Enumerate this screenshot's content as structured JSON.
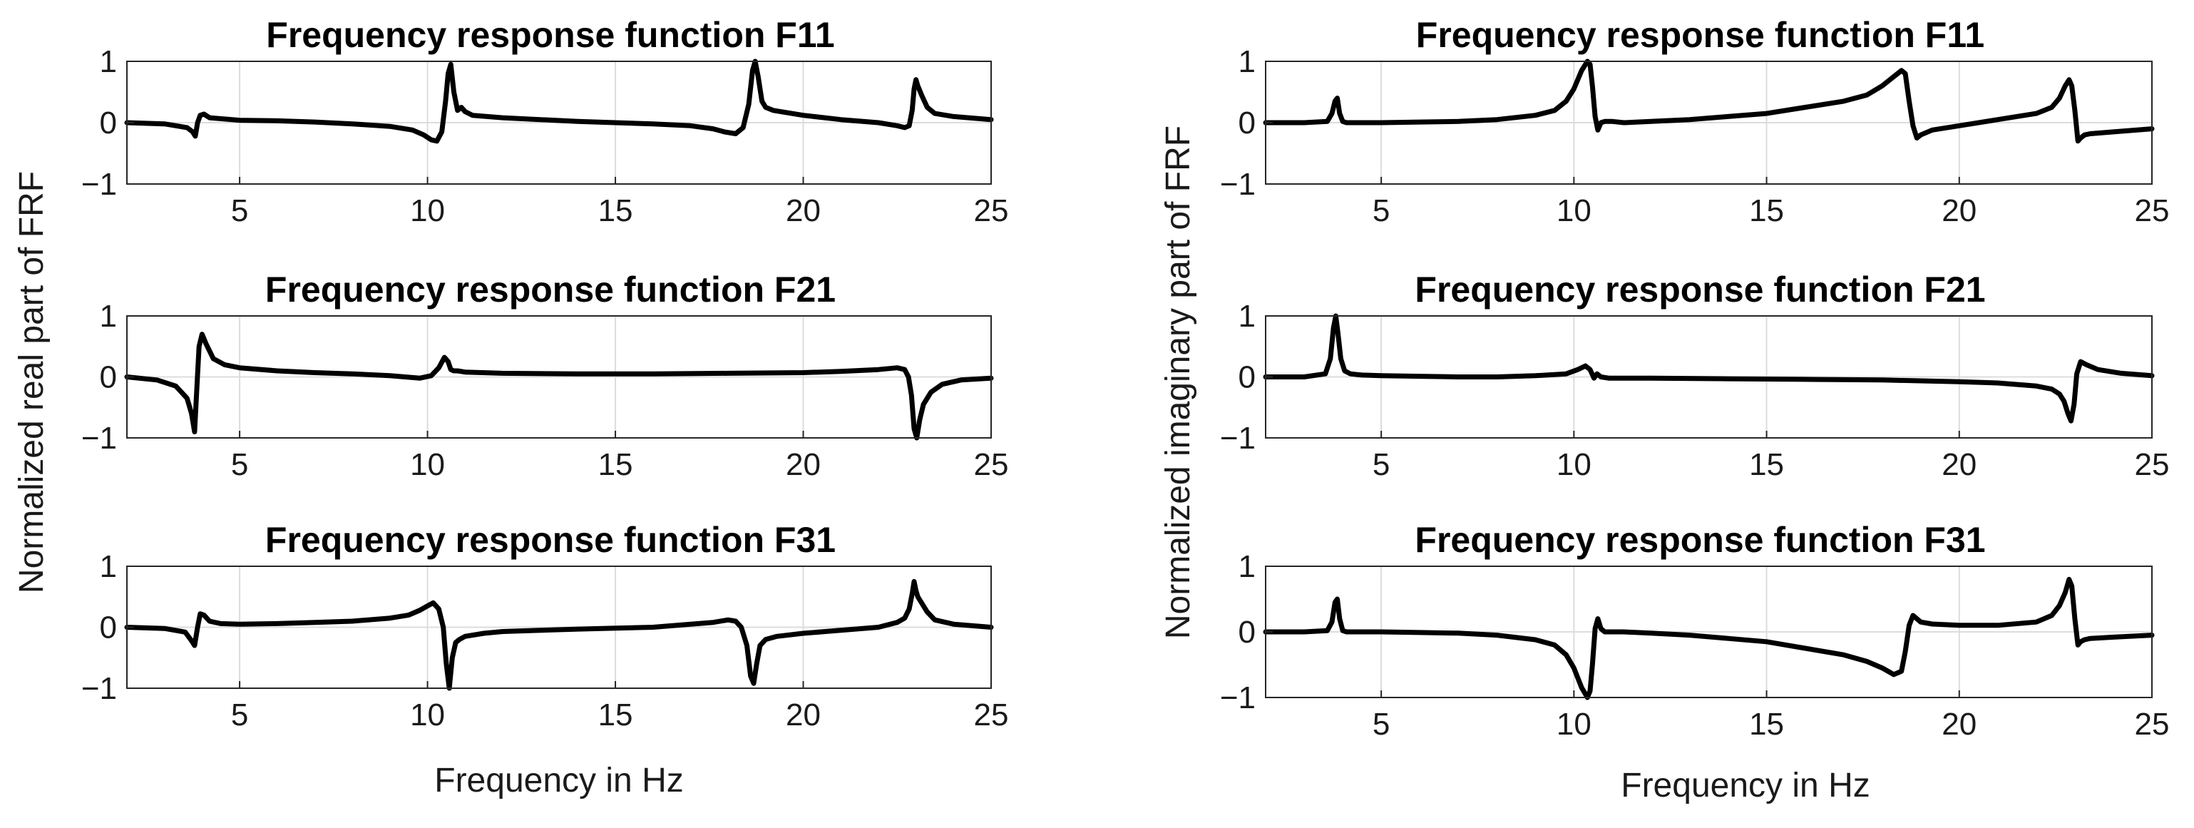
{
  "figure": {
    "ylabel_left": "Normalized real part of FRF",
    "ylabel_right": "Normalized imaginary part of FRF",
    "xlabel": "Frequency in Hz"
  },
  "chart_data": [
    {
      "type": "line",
      "title": "Frequency response function F11",
      "xlabel": "",
      "ylabel": "",
      "xlim": [
        2,
        25
      ],
      "ylim": [
        -1,
        1
      ],
      "xticks": [
        5,
        10,
        15,
        20,
        25
      ],
      "yticks": [
        -1,
        0,
        1
      ],
      "grid": true,
      "line_color": "#000000",
      "series": [
        {
          "x": [
            2,
            3,
            3.6,
            3.75,
            3.82,
            3.88,
            3.95,
            4.05,
            4.2,
            5,
            6,
            7,
            8,
            9,
            9.6,
            9.9,
            10.1,
            10.25,
            10.38,
            10.48,
            10.55,
            10.62,
            10.7,
            10.8,
            10.9,
            11,
            11.2,
            12,
            13,
            14,
            15,
            16,
            17,
            17.6,
            17.9,
            18.2,
            18.4,
            18.55,
            18.65,
            18.72,
            18.8,
            18.9,
            19,
            19.2,
            20,
            21,
            22,
            22.5,
            22.7,
            22.82,
            22.9,
            22.95,
            23.0,
            23.05,
            23.15,
            23.3,
            23.5,
            24,
            25
          ],
          "y": [
            0,
            -0.02,
            -0.08,
            -0.15,
            -0.22,
            0.0,
            0.12,
            0.14,
            0.08,
            0.04,
            0.03,
            0.01,
            -0.02,
            -0.06,
            -0.12,
            -0.2,
            -0.28,
            -0.3,
            -0.15,
            0.35,
            0.8,
            0.95,
            0.5,
            0.2,
            0.25,
            0.18,
            0.12,
            0.08,
            0.05,
            0.02,
            0.0,
            -0.02,
            -0.05,
            -0.1,
            -0.15,
            -0.18,
            -0.08,
            0.3,
            0.85,
            1.0,
            0.75,
            0.35,
            0.25,
            0.2,
            0.12,
            0.05,
            0.0,
            -0.05,
            -0.08,
            -0.05,
            0.2,
            0.55,
            0.7,
            0.6,
            0.45,
            0.25,
            0.15,
            0.1,
            0.05
          ]
        }
      ]
    },
    {
      "type": "line",
      "title": "Frequency response function F11",
      "xlabel": "",
      "ylabel": "",
      "xlim": [
        2,
        25
      ],
      "ylim": [
        -1,
        1
      ],
      "xticks": [
        5,
        10,
        15,
        20,
        25
      ],
      "yticks": [
        -1,
        0,
        1
      ],
      "grid": true,
      "line_color": "#000000",
      "series": [
        {
          "x": [
            2,
            3,
            3.6,
            3.72,
            3.8,
            3.86,
            3.92,
            4.0,
            4.1,
            4.3,
            5,
            6,
            7,
            8,
            9,
            9.5,
            9.8,
            10.0,
            10.2,
            10.35,
            10.42,
            10.48,
            10.55,
            10.62,
            10.7,
            10.8,
            11,
            11.3,
            12,
            13,
            14,
            15,
            16,
            17,
            17.6,
            18.0,
            18.3,
            18.5,
            18.6,
            18.7,
            18.8,
            18.9,
            19.0,
            19.3,
            20,
            21,
            22,
            22.4,
            22.6,
            22.75,
            22.85,
            22.92,
            23.0,
            23.08,
            23.15,
            23.25,
            23.4,
            24,
            25
          ],
          "y": [
            0,
            0.0,
            0.02,
            0.15,
            0.35,
            0.4,
            0.15,
            0.02,
            0.0,
            0.0,
            0.0,
            0.01,
            0.02,
            0.05,
            0.12,
            0.2,
            0.35,
            0.55,
            0.85,
            1.0,
            0.95,
            0.6,
            0.1,
            -0.12,
            0.0,
            0.02,
            0.02,
            0.0,
            0.02,
            0.05,
            0.1,
            0.15,
            0.25,
            0.35,
            0.45,
            0.6,
            0.75,
            0.85,
            0.8,
            0.35,
            -0.05,
            -0.25,
            -0.2,
            -0.12,
            -0.05,
            0.05,
            0.15,
            0.25,
            0.4,
            0.6,
            0.7,
            0.6,
            0.2,
            -0.3,
            -0.25,
            -0.2,
            -0.18,
            -0.15,
            -0.1
          ]
        }
      ]
    },
    {
      "type": "line",
      "title": "Frequency response function F21",
      "xlabel": "",
      "ylabel": "",
      "xlim": [
        2,
        25
      ],
      "ylim": [
        -1,
        1
      ],
      "xticks": [
        5,
        10,
        15,
        20,
        25
      ],
      "yticks": [
        -1,
        0,
        1
      ],
      "grid": true,
      "line_color": "#000000",
      "series": [
        {
          "x": [
            2,
            2.8,
            3.3,
            3.6,
            3.72,
            3.8,
            3.86,
            3.92,
            4.0,
            4.1,
            4.3,
            4.6,
            5,
            6,
            7,
            8,
            9,
            9.8,
            10.1,
            10.3,
            10.45,
            10.55,
            10.62,
            10.7,
            10.8,
            11,
            12,
            14,
            16,
            18,
            20,
            21,
            22,
            22.5,
            22.7,
            22.8,
            22.88,
            22.95,
            23.02,
            23.1,
            23.2,
            23.4,
            23.7,
            24.2,
            25
          ],
          "y": [
            0,
            -0.05,
            -0.15,
            -0.35,
            -0.6,
            -0.9,
            -0.2,
            0.5,
            0.7,
            0.55,
            0.3,
            0.2,
            0.15,
            0.1,
            0.07,
            0.05,
            0.02,
            -0.02,
            0.02,
            0.15,
            0.32,
            0.25,
            0.12,
            0.1,
            0.1,
            0.08,
            0.06,
            0.05,
            0.05,
            0.06,
            0.07,
            0.09,
            0.12,
            0.15,
            0.12,
            0.0,
            -0.3,
            -0.85,
            -1.0,
            -0.7,
            -0.45,
            -0.25,
            -0.12,
            -0.05,
            -0.02
          ]
        }
      ]
    },
    {
      "type": "line",
      "title": "Frequency response function F21",
      "xlabel": "",
      "ylabel": "",
      "xlim": [
        2,
        25
      ],
      "ylim": [
        -1,
        1
      ],
      "xticks": [
        5,
        10,
        15,
        20,
        25
      ],
      "yticks": [
        -1,
        0,
        1
      ],
      "grid": true,
      "line_color": "#000000",
      "series": [
        {
          "x": [
            2,
            3,
            3.55,
            3.68,
            3.76,
            3.82,
            3.88,
            3.95,
            4.05,
            4.2,
            4.5,
            5,
            6,
            7,
            8,
            9,
            9.8,
            10.1,
            10.3,
            10.42,
            10.52,
            10.6,
            10.7,
            10.9,
            11.2,
            12,
            14,
            16,
            18,
            20,
            21,
            22,
            22.4,
            22.6,
            22.72,
            22.82,
            22.9,
            22.98,
            23.05,
            23.15,
            23.3,
            23.6,
            24.2,
            25
          ],
          "y": [
            0,
            0.0,
            0.05,
            0.3,
            0.8,
            1.0,
            0.7,
            0.3,
            0.1,
            0.05,
            0.03,
            0.02,
            0.01,
            0.0,
            0.0,
            0.02,
            0.05,
            0.12,
            0.18,
            0.12,
            -0.02,
            0.05,
            0.0,
            -0.02,
            -0.02,
            -0.02,
            -0.03,
            -0.04,
            -0.05,
            -0.08,
            -0.1,
            -0.15,
            -0.2,
            -0.28,
            -0.4,
            -0.6,
            -0.72,
            -0.45,
            0.05,
            0.25,
            0.2,
            0.12,
            0.06,
            0.02
          ]
        }
      ]
    },
    {
      "type": "line",
      "title": "Frequency response function F31",
      "xlabel": "",
      "ylabel": "",
      "xlim": [
        2,
        25
      ],
      "ylim": [
        -1,
        1
      ],
      "xticks": [
        5,
        10,
        15,
        20,
        25
      ],
      "yticks": [
        -1,
        0,
        1
      ],
      "grid": true,
      "line_color": "#000000",
      "series": [
        {
          "x": [
            2,
            3,
            3.55,
            3.72,
            3.8,
            3.88,
            3.95,
            4.05,
            4.2,
            4.5,
            5,
            6,
            7,
            8,
            9,
            9.5,
            9.8,
            10.0,
            10.15,
            10.3,
            10.42,
            10.5,
            10.58,
            10.66,
            10.75,
            10.85,
            11,
            11.5,
            12,
            14,
            16,
            17,
            17.6,
            18.0,
            18.2,
            18.35,
            18.5,
            18.6,
            18.68,
            18.76,
            18.85,
            19.0,
            19.3,
            20,
            21,
            22,
            22.5,
            22.7,
            22.82,
            22.9,
            22.95,
            23.0,
            23.05,
            23.15,
            23.3,
            23.5,
            24,
            25
          ],
          "y": [
            0,
            -0.02,
            -0.08,
            -0.22,
            -0.3,
            0.0,
            0.22,
            0.2,
            0.1,
            0.06,
            0.05,
            0.06,
            0.08,
            0.1,
            0.15,
            0.2,
            0.28,
            0.35,
            0.4,
            0.3,
            0.0,
            -0.6,
            -1.0,
            -0.5,
            -0.25,
            -0.2,
            -0.15,
            -0.1,
            -0.07,
            -0.03,
            0.0,
            0.05,
            0.08,
            0.12,
            0.1,
            0.0,
            -0.3,
            -0.8,
            -0.92,
            -0.6,
            -0.3,
            -0.2,
            -0.15,
            -0.1,
            -0.05,
            0.0,
            0.08,
            0.15,
            0.3,
            0.55,
            0.75,
            0.6,
            0.5,
            0.4,
            0.25,
            0.12,
            0.05,
            0.0
          ]
        }
      ]
    },
    {
      "type": "line",
      "title": "Frequency response function F31",
      "xlabel": "",
      "ylabel": "",
      "xlim": [
        2,
        25
      ],
      "ylim": [
        -1,
        1
      ],
      "xticks": [
        5,
        10,
        15,
        20,
        25
      ],
      "yticks": [
        -1,
        0,
        1
      ],
      "grid": true,
      "line_color": "#000000",
      "series": [
        {
          "x": [
            2,
            3,
            3.6,
            3.72,
            3.8,
            3.86,
            3.92,
            4.0,
            4.1,
            4.3,
            5,
            6,
            7,
            8,
            9,
            9.5,
            9.8,
            10.0,
            10.2,
            10.35,
            10.42,
            10.48,
            10.55,
            10.62,
            10.7,
            10.8,
            11,
            11.3,
            12,
            13,
            14,
            15,
            16,
            17,
            17.6,
            18.0,
            18.3,
            18.5,
            18.6,
            18.7,
            18.8,
            18.9,
            19.0,
            19.3,
            20,
            21,
            22,
            22.4,
            22.6,
            22.75,
            22.85,
            22.92,
            23.0,
            23.08,
            23.15,
            23.25,
            23.4,
            24,
            25
          ],
          "y": [
            0,
            0.0,
            0.02,
            0.15,
            0.45,
            0.5,
            0.2,
            0.02,
            0.0,
            0.0,
            0.0,
            -0.01,
            -0.02,
            -0.05,
            -0.12,
            -0.2,
            -0.35,
            -0.55,
            -0.85,
            -1.0,
            -0.9,
            -0.5,
            0.05,
            0.2,
            0.05,
            0.0,
            0.0,
            0.0,
            -0.02,
            -0.05,
            -0.1,
            -0.15,
            -0.25,
            -0.35,
            -0.45,
            -0.55,
            -0.65,
            -0.6,
            -0.3,
            0.1,
            0.25,
            0.2,
            0.15,
            0.12,
            0.1,
            0.1,
            0.15,
            0.25,
            0.4,
            0.6,
            0.8,
            0.7,
            0.2,
            -0.2,
            -0.15,
            -0.12,
            -0.1,
            -0.08,
            -0.05
          ]
        }
      ]
    }
  ]
}
